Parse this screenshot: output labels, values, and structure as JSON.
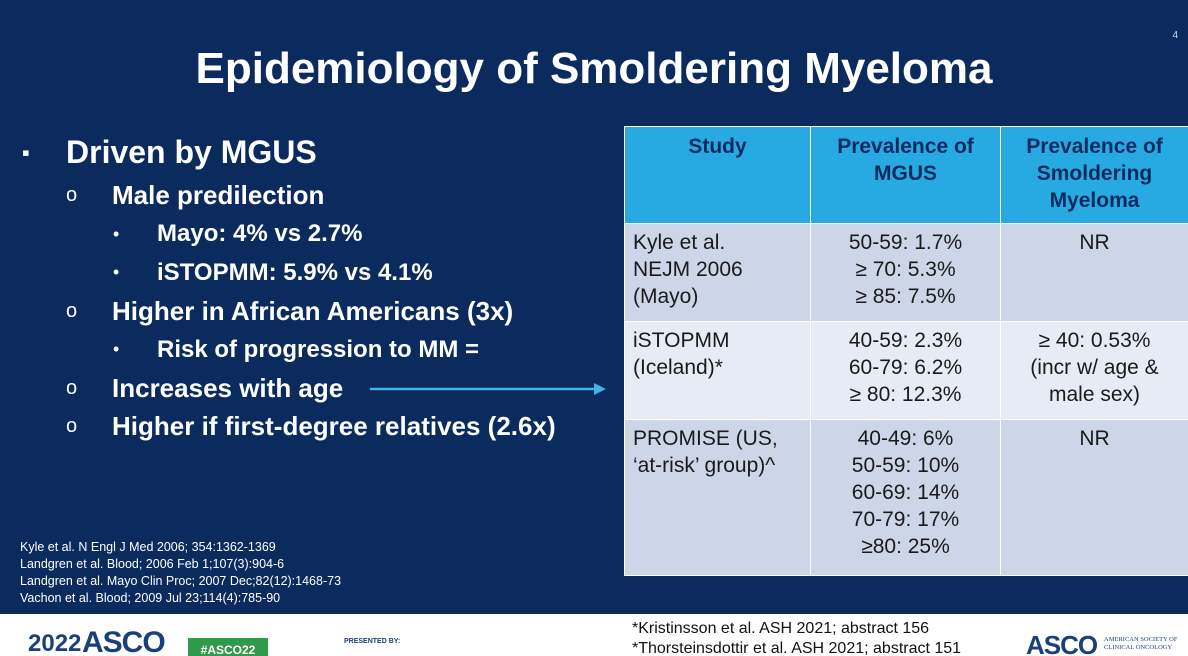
{
  "slide": {
    "page_number": "4",
    "title": "Epidemiology of Smoldering Myeloma",
    "bullets": [
      {
        "text": "Driven by MGUS",
        "items": [
          {
            "text": "Male predilection",
            "items": [
              {
                "text": "Mayo: 4% vs 2.7%"
              },
              {
                "text": "iSTOPMM: 5.9% vs 4.1%"
              }
            ]
          },
          {
            "text": "Higher in African Americans (3x)",
            "items": [
              {
                "text": "Risk of progression to MM ="
              }
            ]
          },
          {
            "text": "Increases with age"
          },
          {
            "text": "Higher if first-degree relatives (2.6x)"
          }
        ]
      }
    ],
    "table": {
      "header": [
        [
          "Study"
        ],
        [
          "Prevalence of",
          "MGUS"
        ],
        [
          "Prevalence of",
          "Smoldering",
          "Myeloma"
        ]
      ],
      "rows": [
        [
          [
            "Kyle et al.",
            "NEJM 2006",
            "(Mayo)"
          ],
          [
            "50-59: 1.7%",
            "≥ 70: 5.3%",
            "≥ 85: 7.5%"
          ],
          [
            "NR"
          ]
        ],
        [
          [
            "iSTOPMM",
            "(Iceland)*"
          ],
          [
            "40-59: 2.3%",
            "60-79: 6.2%",
            "≥ 80: 12.3%"
          ],
          [
            "≥ 40: 0.53%",
            "(incr w/ age &",
            "male sex)"
          ]
        ],
        [
          [
            "PROMISE (US,",
            "‘at-risk’ group)^"
          ],
          [
            "40-49: 6%",
            "50-59: 10%",
            "60-69: 14%",
            "70-79: 17%",
            "≥80: 25%"
          ],
          [
            "NR"
          ]
        ]
      ]
    },
    "references": [
      "Kyle et al. N Engl J Med 2006; 354:1362-1369",
      "Landgren et al. Blood; 2006 Feb 1;107(3):904-6",
      "Landgren et al. Mayo Clin Proc; 2007 Dec;82(12):1468-73",
      "Vachon et al. Blood; 2009 Jul 23;114(4):785-90"
    ],
    "footnotes": [
      "*Kristinsson et al. ASH 2021; abstract 156",
      "*Thorsteinsdottir et al. ASH 2021; abstract 151"
    ],
    "footer": {
      "logo_year": "2022",
      "logo_asco": "ASCO",
      "hashtag": "#ASCO22",
      "presented_by": "PRESENTED BY:",
      "org_short": "ASCO",
      "org_full": [
        "AMERICAN SOCIETY OF",
        "CLINICAL ONCOLOGY"
      ]
    }
  }
}
